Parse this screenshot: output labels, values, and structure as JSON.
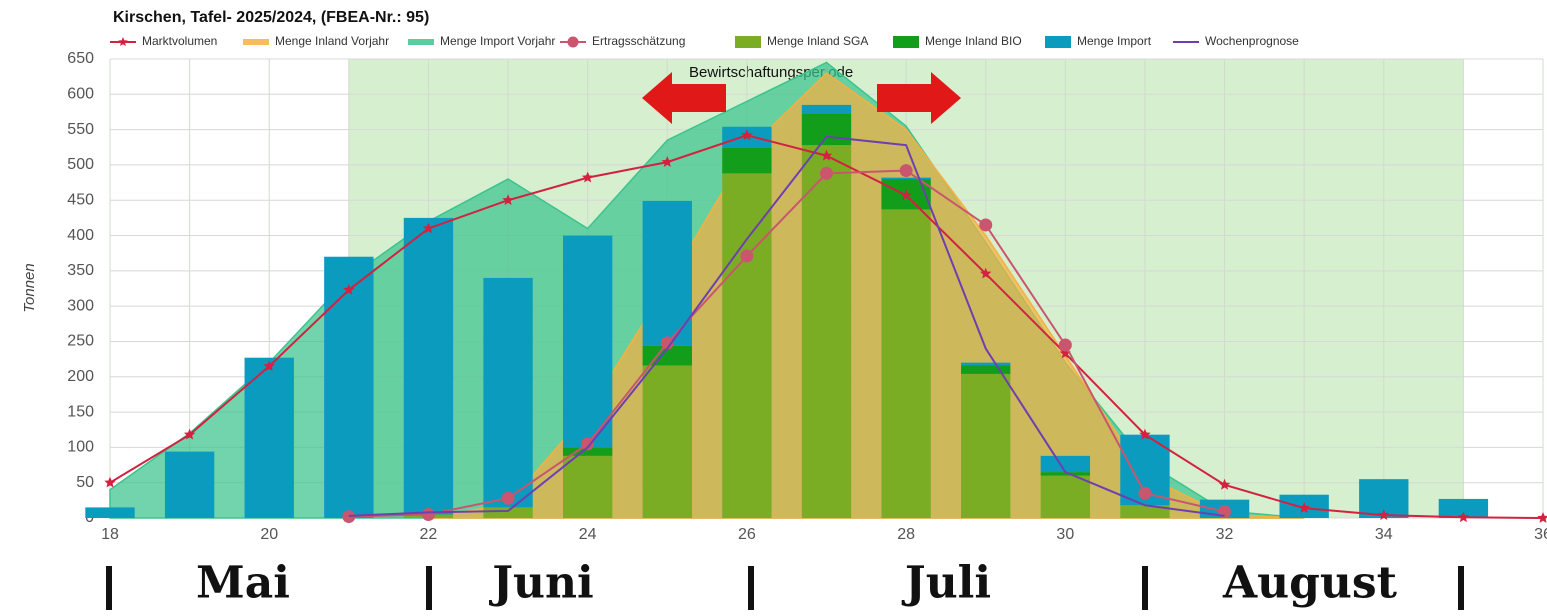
{
  "chart_data": {
    "type": "combo",
    "title": "Kirschen, Tafel- 2025/2024, (FBEA-Nr.: 95)",
    "y_label": "Tonnen",
    "x": [
      18,
      19,
      20,
      21,
      22,
      23,
      24,
      25,
      26,
      27,
      28,
      29,
      30,
      31,
      32,
      33,
      34,
      35,
      36
    ],
    "xlim": [
      18,
      36
    ],
    "xticks": [
      18,
      20,
      22,
      24,
      26,
      28,
      30,
      32,
      34,
      36
    ],
    "ylim": [
      0,
      650
    ],
    "yticks": [
      0,
      50,
      100,
      150,
      200,
      250,
      300,
      350,
      400,
      450,
      500,
      550,
      600,
      650
    ],
    "grid": true,
    "period": {
      "label": "Bewirtschaftungsperiode",
      "start": 21,
      "end": 35,
      "color": "#d6efcf"
    },
    "months": [
      "Mai",
      "Juni",
      "Juli",
      "August"
    ],
    "series": [
      {
        "name": "Marktvolumen",
        "type": "line",
        "marker": "star",
        "color": "#d22240",
        "values": [
          50,
          118,
          215,
          323,
          410,
          450,
          482,
          504,
          542,
          513,
          457,
          346,
          233,
          118,
          47,
          14,
          4,
          1,
          0
        ]
      },
      {
        "name": "Menge Inland Vorjahr",
        "type": "area",
        "color": "#f5b041",
        "values": [
          null,
          null,
          null,
          null,
          0,
          20,
          150,
          330,
          520,
          630,
          550,
          400,
          230,
          60,
          5,
          0,
          null,
          null,
          null
        ]
      },
      {
        "name": "Menge Import Vorjahr",
        "type": "area",
        "color": "#3cc48e",
        "values": [
          40,
          120,
          220,
          340,
          420,
          480,
          410,
          535,
          590,
          645,
          555,
          390,
          220,
          80,
          10,
          0,
          null,
          null,
          null
        ]
      },
      {
        "name": "Ertragsschätzung",
        "type": "line",
        "marker": "circle",
        "color": "#c9566e",
        "values": [
          null,
          null,
          null,
          2,
          5,
          28,
          105,
          248,
          371,
          488,
          492,
          415,
          245,
          35,
          9,
          null,
          null,
          null,
          null
        ]
      },
      {
        "name": "Menge Inland SGA",
        "type": "bar",
        "color": "#7aad24",
        "values": [
          null,
          null,
          null,
          null,
          5,
          15,
          88,
          216,
          488,
          528,
          437,
          204,
          60,
          18,
          null,
          null,
          null,
          null,
          null
        ]
      },
      {
        "name": "Menge Inland BIO",
        "type": "bar",
        "color": "#129e1a",
        "values": [
          null,
          null,
          null,
          null,
          null,
          null,
          12,
          28,
          36,
          45,
          43,
          12,
          5,
          null,
          null,
          null,
          null,
          null,
          null
        ]
      },
      {
        "name": "Menge Import",
        "type": "bar",
        "color": "#0a9bbf",
        "values": [
          15,
          94,
          227,
          370,
          420,
          325,
          300,
          205,
          30,
          12,
          2,
          4,
          23,
          100,
          26,
          33,
          55,
          27,
          null
        ]
      },
      {
        "name": "Wochenprognose",
        "type": "line",
        "marker": "none",
        "color": "#6f3fb0",
        "values": [
          null,
          null,
          null,
          3,
          8,
          10,
          100,
          240,
          395,
          540,
          528,
          240,
          65,
          18,
          3,
          null,
          null,
          null,
          null
        ]
      }
    ]
  }
}
